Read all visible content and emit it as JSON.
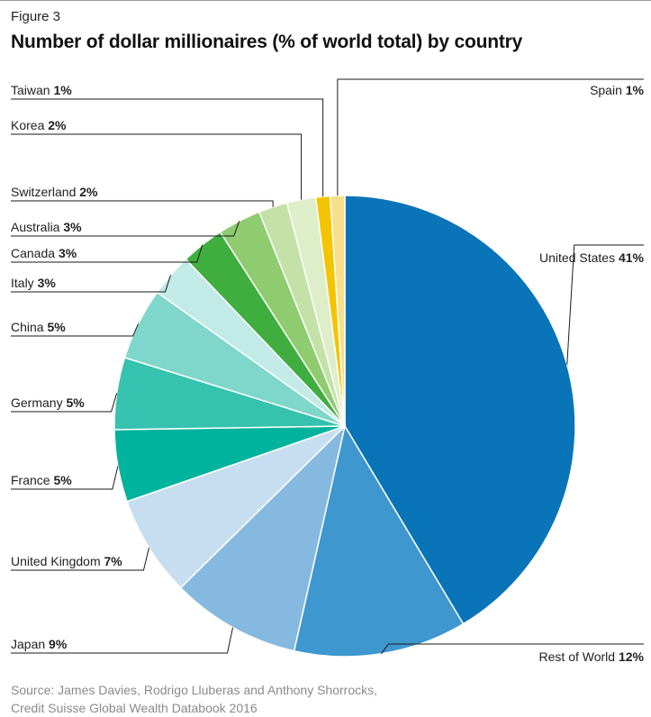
{
  "figure_label": "Figure 3",
  "source": {
    "line1": "Source: James Davies, Rodrigo Lluberas and Anthony Shorrocks,",
    "line2": "Credit Suisse Global Wealth Databook 2016"
  },
  "chart_data": {
    "type": "pie",
    "title": "Number of dollar millionaires (% of world total) by country",
    "unit": "%",
    "slices": [
      {
        "label": "United States",
        "value": 41,
        "color": "#0a74b8"
      },
      {
        "label": "Rest of World",
        "value": 12,
        "color": "#3f97cf"
      },
      {
        "label": "Japan",
        "value": 9,
        "color": "#86b9df"
      },
      {
        "label": "United Kingdom",
        "value": 7,
        "color": "#c6def0"
      },
      {
        "label": "France",
        "value": 5,
        "color": "#00b39c"
      },
      {
        "label": "Germany",
        "value": 5,
        "color": "#35c2ae"
      },
      {
        "label": "China",
        "value": 5,
        "color": "#7fd6cb"
      },
      {
        "label": "Italy",
        "value": 3,
        "color": "#c2eae6"
      },
      {
        "label": "Canada",
        "value": 3,
        "color": "#3fae3f"
      },
      {
        "label": "Australia",
        "value": 3,
        "color": "#8fcb6f"
      },
      {
        "label": "Switzerland",
        "value": 2,
        "color": "#c4e2a8"
      },
      {
        "label": "Korea",
        "value": 2,
        "color": "#ddeec8"
      },
      {
        "label": "Taiwan",
        "value": 1,
        "color": "#f5c400"
      },
      {
        "label": "Spain",
        "value": 1,
        "color": "#f7e08a"
      }
    ]
  }
}
